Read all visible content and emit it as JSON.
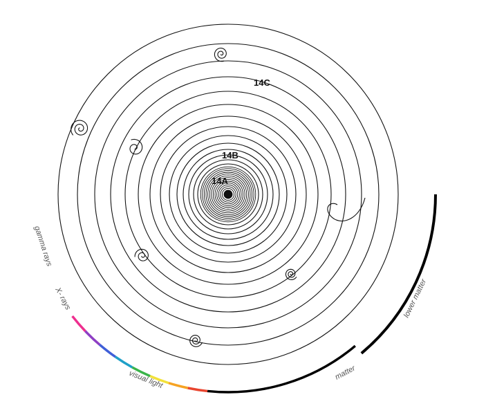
{
  "labels": {
    "l14a": "14A",
    "l14b": "14B",
    "l14c": "14C",
    "gamma": "gamma rays",
    "xrays": "X- rays",
    "visual": "visual light",
    "matter": "matter",
    "lower": "lower matter"
  },
  "colors": {
    "line": "#111111",
    "matter_arc": "#000000",
    "spectrum": [
      "#ee2f8f",
      "#8e3fc4",
      "#3f5fd8",
      "#1fa0c8",
      "#3bb44a",
      "#f2e13a",
      "#f6a323",
      "#e9452f"
    ]
  }
}
